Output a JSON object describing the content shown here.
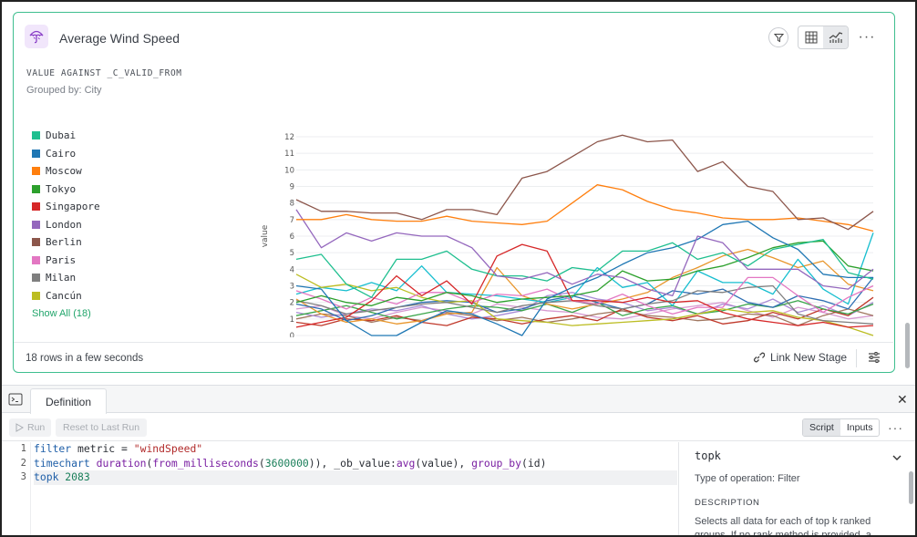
{
  "card": {
    "title": "Average Wind Speed",
    "subtitle": "VALUE AGAINST _C_VALID_FROM",
    "grouped_by": "Grouped by: City",
    "show_all": "Show All (18)",
    "rows_info": "18 rows in a few seconds",
    "link_new_stage": "Link New Stage",
    "more": "···"
  },
  "legend": [
    {
      "name": "Dubai",
      "color": "#1fbf8f"
    },
    {
      "name": "Cairo",
      "color": "#1f77b4"
    },
    {
      "name": "Moscow",
      "color": "#ff7f0e"
    },
    {
      "name": "Tokyo",
      "color": "#2ca02c"
    },
    {
      "name": "Singapore",
      "color": "#d62728"
    },
    {
      "name": "London",
      "color": "#9467bd"
    },
    {
      "name": "Berlin",
      "color": "#8c564b"
    },
    {
      "name": "Paris",
      "color": "#e377c2"
    },
    {
      "name": "Milan",
      "color": "#7f7f7f"
    },
    {
      "name": "Cancún",
      "color": "#bcbd22"
    }
  ],
  "chart_data": {
    "type": "line",
    "ylabel": "value",
    "xlabel": "",
    "ylim": [
      0,
      12
    ],
    "yticks": [
      "0",
      "1",
      "2",
      "3",
      "4",
      "5",
      "6",
      "7",
      "8",
      "9",
      "10",
      "11",
      "12"
    ],
    "grid": true,
    "series": [
      {
        "name": "Berlin",
        "color": "#8c564b",
        "values": [
          8.2,
          7.5,
          7.5,
          7.4,
          7.4,
          7.0,
          7.6,
          7.6,
          7.3,
          9.5,
          9.9,
          10.8,
          11.7,
          12.1,
          11.7,
          11.8,
          9.9,
          10.5,
          9.0,
          8.7,
          7.0,
          7.1,
          6.4,
          7.5
        ]
      },
      {
        "name": "Moscow",
        "color": "#ff7f0e",
        "values": [
          7.0,
          7.0,
          7.3,
          7.0,
          6.9,
          6.9,
          7.2,
          6.9,
          6.8,
          6.7,
          6.9,
          8.0,
          9.1,
          8.8,
          8.1,
          7.6,
          7.4,
          7.1,
          7.0,
          7.0,
          7.1,
          6.9,
          6.7,
          6.3
        ]
      },
      {
        "name": "London",
        "color": "#9467bd",
        "values": [
          7.6,
          5.3,
          6.2,
          5.7,
          6.2,
          6.0,
          6.0,
          5.3,
          3.6,
          3.4,
          3.8,
          3.1,
          3.7,
          3.5,
          2.8,
          2.4,
          6.0,
          5.6,
          4.0,
          4.0,
          4.0,
          3.0,
          2.8,
          4.0
        ]
      },
      {
        "name": "Dubai",
        "color": "#1fbf8f",
        "values": [
          4.6,
          4.9,
          3.1,
          2.3,
          4.6,
          4.6,
          5.1,
          4.0,
          3.6,
          3.6,
          3.3,
          4.1,
          3.9,
          5.1,
          5.1,
          5.6,
          4.6,
          5.0,
          4.2,
          5.2,
          5.5,
          5.8,
          3.8,
          3.4
        ]
      },
      {
        "name": "Cairo",
        "color": "#1f77b4",
        "values": [
          3.0,
          2.8,
          0.9,
          0.0,
          0.0,
          0.8,
          1.5,
          1.3,
          0.7,
          0.0,
          2.2,
          2.9,
          3.5,
          4.3,
          5.0,
          5.3,
          5.8,
          6.7,
          6.9,
          5.9,
          5.2,
          3.7,
          3.5,
          3.5
        ]
      },
      {
        "name": "Tokyo",
        "color": "#2ca02c",
        "values": [
          2.0,
          2.4,
          2.0,
          1.8,
          2.3,
          2.1,
          2.6,
          2.4,
          2.0,
          2.2,
          2.3,
          2.4,
          2.7,
          3.9,
          3.3,
          3.4,
          3.9,
          4.2,
          4.7,
          5.3,
          5.6,
          5.7,
          4.2,
          3.9
        ]
      },
      {
        "name": "Singapore",
        "color": "#d62728",
        "values": [
          0.5,
          0.8,
          1.1,
          2.1,
          3.6,
          2.4,
          3.3,
          1.9,
          4.8,
          5.5,
          5.1,
          2.1,
          2.1,
          2.0,
          2.3,
          2.0,
          2.1,
          1.4,
          1.0,
          0.8,
          0.6,
          0.8,
          0.5,
          0.6
        ]
      },
      {
        "name": "Paris",
        "color": "#e377c2",
        "values": [
          2.7,
          2.2,
          1.6,
          2.3,
          1.9,
          2.6,
          2.6,
          2.0,
          2.5,
          2.4,
          2.8,
          2.1,
          1.9,
          2.5,
          1.8,
          1.3,
          1.7,
          1.7,
          3.5,
          3.5,
          2.4,
          1.4,
          2.3,
          3.0
        ]
      },
      {
        "name": "Milan",
        "color": "#7f7f7f",
        "values": [
          2.1,
          1.8,
          1.3,
          1.5,
          1.7,
          1.9,
          2.0,
          1.7,
          1.4,
          1.8,
          2.0,
          2.1,
          1.8,
          1.6,
          1.9,
          2.1,
          2.7,
          2.6,
          2.9,
          3.0,
          1.3,
          0.9,
          0.8,
          0.7
        ]
      },
      {
        "name": "Cancún",
        "color": "#bcbd22",
        "values": [
          3.7,
          2.9,
          3.1,
          2.7,
          2.9,
          2.3,
          2.0,
          2.1,
          1.0,
          0.9,
          0.8,
          0.6,
          0.7,
          0.8,
          0.9,
          1.0,
          1.3,
          1.6,
          1.4,
          1.5,
          1.1,
          0.9,
          0.5,
          0.0
        ]
      },
      {
        "name": "",
        "color": "#17becf",
        "values": [
          2.5,
          2.9,
          2.7,
          3.2,
          2.7,
          4.2,
          2.6,
          2.5,
          2.4,
          2.2,
          2.0,
          2.3,
          4.1,
          2.9,
          3.2,
          1.8,
          3.9,
          3.2,
          3.2,
          2.5,
          4.6,
          2.8,
          1.9,
          6.2
        ]
      },
      {
        "name": "",
        "color": "#2f6fb3",
        "values": [
          1.9,
          1.6,
          0.9,
          1.2,
          1.7,
          2.0,
          2.1,
          2.0,
          1.4,
          1.6,
          2.1,
          2.4,
          2.0,
          1.6,
          1.9,
          2.7,
          2.5,
          2.8,
          2.0,
          1.7,
          2.4,
          2.1,
          1.6,
          3.5
        ]
      },
      {
        "name": "",
        "color": "#e8962c",
        "values": [
          2.2,
          1.3,
          0.8,
          1.0,
          0.7,
          0.9,
          1.3,
          1.4,
          4.1,
          2.4,
          1.9,
          1.6,
          1.9,
          2.2,
          2.6,
          3.5,
          4.1,
          4.8,
          5.2,
          4.7,
          4.1,
          4.5,
          3.1,
          2.7
        ]
      },
      {
        "name": "",
        "color": "#3aa64a",
        "values": [
          1.2,
          1.5,
          1.8,
          1.4,
          1.0,
          1.3,
          1.6,
          1.8,
          1.7,
          1.5,
          1.9,
          1.4,
          2.0,
          1.2,
          1.6,
          1.8,
          1.3,
          1.5,
          1.9,
          1.7,
          2.1,
          1.6,
          1.3,
          1.9
        ]
      },
      {
        "name": "",
        "color": "#c0392b",
        "values": [
          0.8,
          0.6,
          1.0,
          0.9,
          1.2,
          0.8,
          0.6,
          1.1,
          1.0,
          0.7,
          1.0,
          1.2,
          0.9,
          1.6,
          1.1,
          0.9,
          1.2,
          0.7,
          0.9,
          1.4,
          1.0,
          1.6,
          1.2,
          2.3
        ]
      },
      {
        "name": "",
        "color": "#a98bd6",
        "values": [
          1.4,
          1.1,
          1.3,
          1.6,
          1.5,
          1.8,
          1.3,
          1.0,
          1.2,
          1.5,
          2.4,
          2.6,
          2.2,
          2.0,
          1.5,
          1.7,
          1.3,
          1.9,
          1.6,
          2.2,
          1.4,
          1.8,
          1.2,
          2.0
        ]
      },
      {
        "name": "",
        "color": "#a0765f",
        "values": [
          1.0,
          1.3,
          1.2,
          0.8,
          1.1,
          0.9,
          1.4,
          1.2,
          0.9,
          1.1,
          0.8,
          1.0,
          1.3,
          1.5,
          1.2,
          1.1,
          0.9,
          1.0,
          1.3,
          1.2,
          0.6,
          1.2,
          1.6,
          1.2
        ]
      },
      {
        "name": "",
        "color": "#d69ad0",
        "values": [
          1.6,
          1.8,
          1.2,
          1.0,
          1.4,
          1.7,
          1.5,
          1.3,
          1.9,
          1.7,
          1.5,
          1.4,
          1.1,
          1.0,
          1.3,
          1.6,
          1.8,
          2.0,
          1.5,
          1.1,
          1.7,
          1.4,
          1.0,
          1.2
        ]
      }
    ]
  },
  "panel": {
    "tab": "Definition",
    "run": "Run",
    "reset": "Reset to Last Run",
    "script": "Script",
    "inputs": "Inputs",
    "more": "···",
    "close": "✕",
    "line_numbers": [
      "1",
      "2",
      "3"
    ],
    "code": {
      "l1": {
        "kw": "filter",
        "p1": " metric = ",
        "str": "\"windSpeed\""
      },
      "l2": {
        "kw": "timechart",
        "fn1": "duration",
        "p1": "(",
        "fn2": "from_milliseconds",
        "p2": "(",
        "num": "3600000",
        "p3": ")), _ob_value:",
        "fn3": "avg",
        "p4": "(value), ",
        "fn4": "group_by",
        "p5": "(id)"
      },
      "l3": {
        "kw": "topk",
        "num": "2083"
      }
    },
    "side": {
      "title": "topk",
      "type": "Type of operation: Filter",
      "heading": "DESCRIPTION",
      "desc": "Selects all data for each of top k ranked groups. If no rank method is provided, a"
    }
  }
}
